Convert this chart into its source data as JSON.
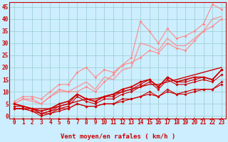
{
  "background_color": "#cceeff",
  "grid_color": "#99cccc",
  "xlabel": "Vent moyen/en rafales ( km/h )",
  "xlabel_color": "#cc0000",
  "xlabel_fontsize": 6.5,
  "tick_color": "#cc0000",
  "tick_fontsize": 5.5,
  "xlim": [
    -0.5,
    23.5
  ],
  "ylim": [
    -1,
    47
  ],
  "yticks": [
    0,
    5,
    10,
    15,
    20,
    25,
    30,
    35,
    40,
    45
  ],
  "xticks": [
    0,
    1,
    2,
    3,
    4,
    5,
    6,
    7,
    8,
    9,
    10,
    11,
    12,
    13,
    14,
    15,
    16,
    17,
    18,
    19,
    20,
    21,
    22,
    23
  ],
  "x": [
    0,
    1,
    2,
    3,
    4,
    5,
    6,
    7,
    8,
    9,
    10,
    11,
    12,
    13,
    14,
    15,
    16,
    17,
    18,
    19,
    20,
    21,
    22,
    23
  ],
  "series": [
    {
      "y": [
        3,
        3,
        3,
        3,
        3,
        4,
        5,
        6,
        7,
        7,
        8,
        9,
        10,
        11,
        12,
        13,
        13,
        14,
        15,
        16,
        17,
        18,
        19,
        20
      ],
      "color": "#cc0000",
      "alpha": 1.0,
      "linewidth": 1.0,
      "marker": null,
      "markersize": 0,
      "zorder": 3
    },
    {
      "y": [
        4,
        4,
        3,
        1,
        2,
        4,
        5,
        9,
        7,
        6,
        8,
        8,
        10,
        11,
        13,
        15,
        12,
        16,
        14,
        14,
        15,
        16,
        15,
        19
      ],
      "color": "#cc0000",
      "alpha": 1.0,
      "linewidth": 0.8,
      "marker": "D",
      "markersize": 1.8,
      "zorder": 5
    },
    {
      "y": [
        5,
        4,
        3,
        1,
        1,
        3,
        4,
        8,
        6,
        5,
        7,
        7,
        9,
        10,
        12,
        14,
        11,
        15,
        13,
        13,
        14,
        15,
        14,
        17
      ],
      "color": "#cc0000",
      "alpha": 1.0,
      "linewidth": 0.8,
      "marker": "D",
      "markersize": 1.8,
      "zorder": 5
    },
    {
      "y": [
        3,
        3,
        2,
        0,
        1,
        2,
        3,
        5,
        4,
        4,
        5,
        5,
        6,
        7,
        8,
        9,
        8,
        10,
        9,
        9,
        10,
        11,
        11,
        13
      ],
      "color": "#cc0000",
      "alpha": 1.0,
      "linewidth": 0.8,
      "marker": "D",
      "markersize": 1.8,
      "zorder": 5
    },
    {
      "y": [
        5,
        4,
        3,
        2,
        3,
        5,
        6,
        9,
        7,
        6,
        8,
        9,
        11,
        12,
        14,
        15,
        12,
        16,
        14,
        15,
        16,
        16,
        15,
        19
      ],
      "color": "#cc0000",
      "alpha": 1.0,
      "linewidth": 1.2,
      "marker": "D",
      "markersize": 2.0,
      "zorder": 4
    },
    {
      "y": [
        3,
        3,
        2,
        1,
        2,
        3,
        3,
        5,
        4,
        4,
        5,
        5,
        7,
        7,
        8,
        10,
        8,
        11,
        9,
        10,
        11,
        11,
        11,
        14
      ],
      "color": "#cc0000",
      "alpha": 1.0,
      "linewidth": 0.8,
      "marker": "D",
      "markersize": 1.8,
      "zorder": 5
    },
    {
      "y": [
        6,
        8,
        8,
        7,
        10,
        13,
        13,
        18,
        20,
        16,
        19,
        18,
        21,
        22,
        24,
        27,
        26,
        30,
        28,
        27,
        31,
        35,
        37,
        40
      ],
      "color": "#ff8888",
      "alpha": 1.0,
      "linewidth": 0.8,
      "marker": "D",
      "markersize": 1.8,
      "zorder": 2
    },
    {
      "y": [
        5,
        7,
        7,
        5,
        8,
        11,
        10,
        10,
        12,
        10,
        14,
        17,
        21,
        24,
        39,
        35,
        30,
        36,
        32,
        33,
        35,
        38,
        46,
        44
      ],
      "color": "#ff8888",
      "alpha": 1.0,
      "linewidth": 0.8,
      "marker": "D",
      "markersize": 1.8,
      "zorder": 2
    },
    {
      "y": [
        5,
        7,
        6,
        5,
        8,
        10,
        10,
        12,
        14,
        11,
        16,
        15,
        19,
        20,
        30,
        29,
        27,
        32,
        29,
        29,
        32,
        35,
        40,
        41
      ],
      "color": "#ff8888",
      "alpha": 0.7,
      "linewidth": 1.2,
      "marker": null,
      "markersize": 0,
      "zorder": 1
    }
  ]
}
